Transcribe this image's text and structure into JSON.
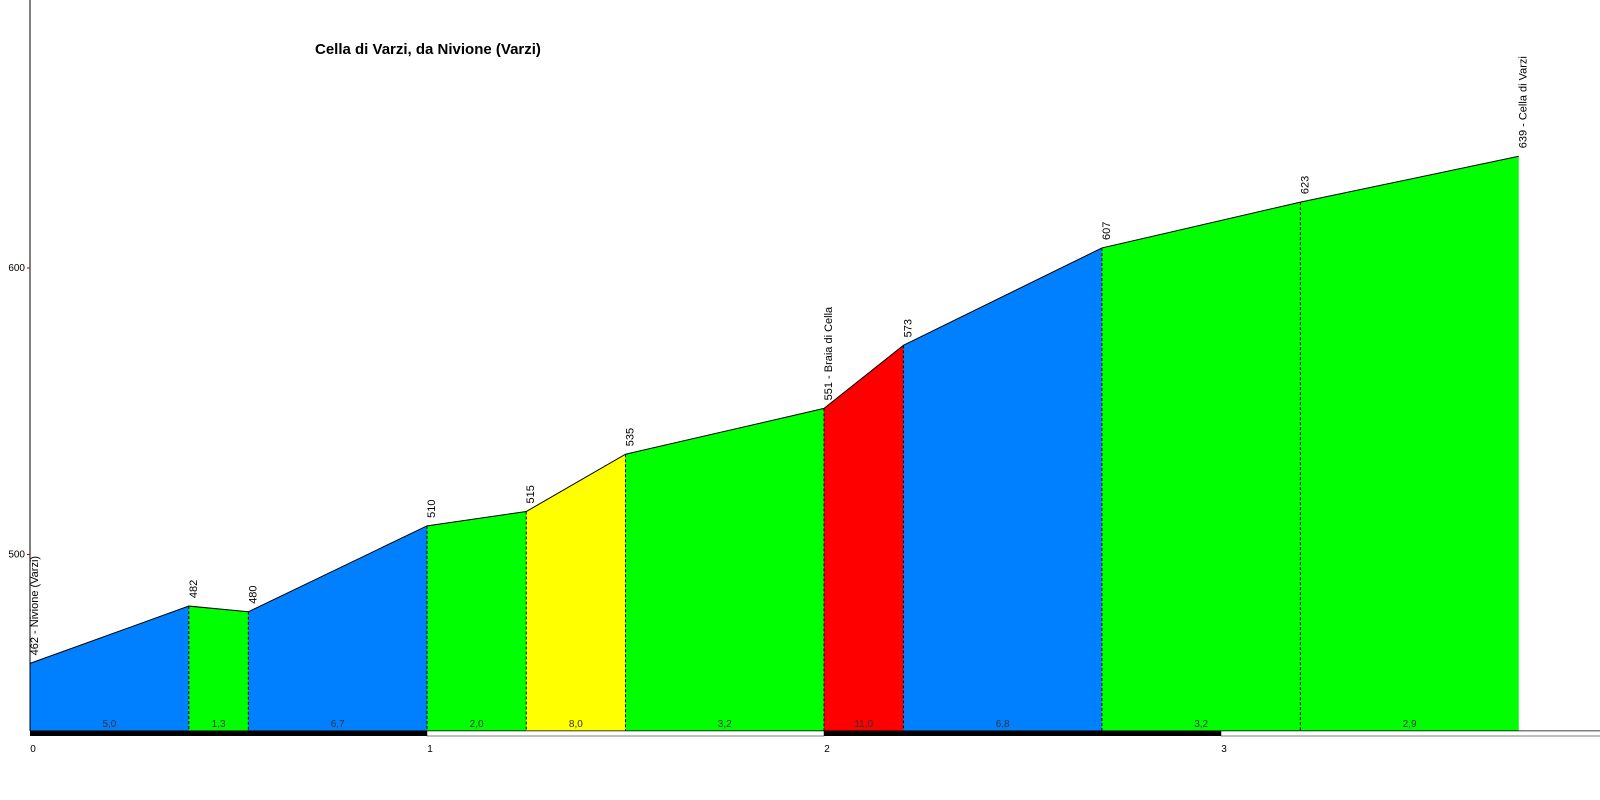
{
  "chart_data": {
    "type": "area",
    "title": "Cella di Varzi, da Nivione (Varzi)",
    "xlabel": "",
    "ylabel": "",
    "xlim": [
      0,
      3.95
    ],
    "ylim": [
      438,
      692
    ],
    "x_ticks": [
      "0",
      "1",
      "2",
      "3"
    ],
    "y_ticks": [
      "500",
      "600"
    ],
    "profile": [
      {
        "x": 0.0,
        "elev": 462,
        "label": "462 - Nivione (Varzi)"
      },
      {
        "x": 0.4,
        "elev": 482,
        "label": "482"
      },
      {
        "x": 0.55,
        "elev": 480,
        "label": "480"
      },
      {
        "x": 1.0,
        "elev": 510,
        "label": "510"
      },
      {
        "x": 1.25,
        "elev": 515,
        "label": "515"
      },
      {
        "x": 1.5,
        "elev": 535,
        "label": "535"
      },
      {
        "x": 2.0,
        "elev": 551,
        "label": "551 - Braia di Cella"
      },
      {
        "x": 2.2,
        "elev": 573,
        "label": "573"
      },
      {
        "x": 2.7,
        "elev": 607,
        "label": "607"
      },
      {
        "x": 3.2,
        "elev": 623,
        "label": "623"
      },
      {
        "x": 3.75,
        "elev": 639,
        "label": "639 - Cella di Varzi"
      }
    ],
    "segments": [
      {
        "gradient": "5,0",
        "color": "#0080ff"
      },
      {
        "gradient": "1,3",
        "color": "#00ff00"
      },
      {
        "gradient": "6,7",
        "color": "#0080ff"
      },
      {
        "gradient": "2,0",
        "color": "#00ff00"
      },
      {
        "gradient": "8,0",
        "color": "#ffff00"
      },
      {
        "gradient": "3,2",
        "color": "#00ff00"
      },
      {
        "gradient": "11,0",
        "color": "#ff0000"
      },
      {
        "gradient": "6,8",
        "color": "#0080ff"
      },
      {
        "gradient": "3,2",
        "color": "#00ff00"
      },
      {
        "gradient": "2,9",
        "color": "#00ff00"
      }
    ]
  }
}
